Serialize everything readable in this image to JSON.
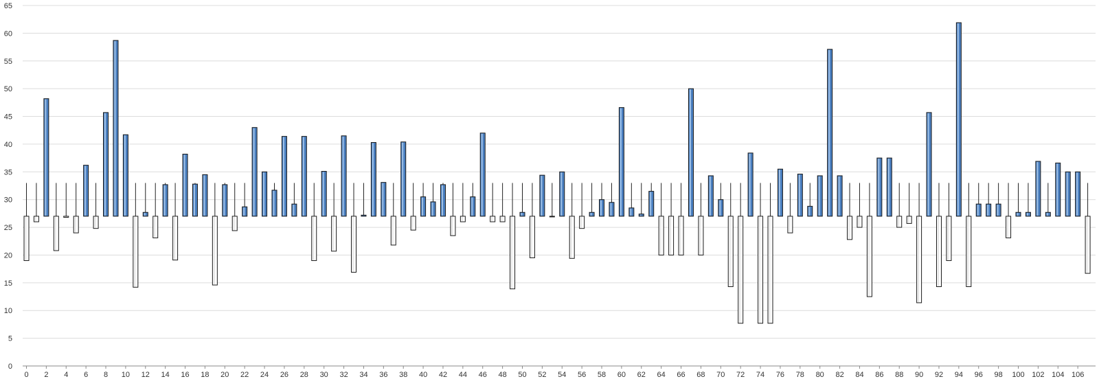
{
  "chart_data": {
    "type": "bar",
    "baseline": 27,
    "whisker_top": 33,
    "ylim": [
      0,
      65
    ],
    "y_ticks": [
      0,
      5,
      10,
      15,
      20,
      25,
      30,
      35,
      40,
      45,
      50,
      55,
      60,
      65
    ],
    "x_ticks": [
      0,
      2,
      4,
      6,
      8,
      10,
      12,
      14,
      16,
      18,
      20,
      22,
      24,
      26,
      28,
      30,
      32,
      34,
      36,
      38,
      40,
      42,
      44,
      46,
      48,
      50,
      52,
      54,
      56,
      58,
      60,
      62,
      64,
      66,
      68,
      70,
      72,
      74,
      76,
      78,
      80,
      82,
      84,
      86,
      88,
      90,
      92,
      94,
      96,
      98,
      100,
      102,
      104,
      106
    ],
    "grid": true,
    "colors": {
      "increase": "#4a7fc0",
      "decrease": "#ffffff",
      "outline": "#1a1a1a"
    },
    "values": [
      19,
      26,
      48.2,
      20.8,
      26.8,
      24,
      36.2,
      24.8,
      45.7,
      58.7,
      41.7,
      14.2,
      27.7,
      23.1,
      32.7,
      19.1,
      38.2,
      32.8,
      34.5,
      14.6,
      32.7,
      24.4,
      28.7,
      43,
      35,
      31.7,
      41.4,
      29.2,
      41.4,
      19,
      35.1,
      20.7,
      41.5,
      16.9,
      27.2,
      40.3,
      33.1,
      21.8,
      40.4,
      24.5,
      30.5,
      29.6,
      32.7,
      23.5,
      26,
      30.5,
      42,
      26,
      26,
      13.9,
      27.7,
      19.5,
      34.4,
      27,
      35,
      19.4,
      24.8,
      27.7,
      30,
      29.5,
      46.6,
      28.5,
      27.4,
      31.5,
      20,
      20,
      20,
      50,
      20,
      34.3,
      30,
      14.3,
      7.7,
      38.4,
      7.7,
      7.7,
      35.5,
      24,
      34.6,
      28.8,
      34.3,
      57.1,
      34.3,
      22.8,
      25,
      12.5,
      37.5,
      37.5,
      25,
      25.7,
      11.4,
      45.7,
      14.3,
      19,
      61.9,
      14.3,
      29.2,
      29.2,
      29.2,
      23.1,
      27.7,
      27.7,
      36.9,
      27.7,
      36.6,
      35,
      35,
      16.7
    ]
  }
}
